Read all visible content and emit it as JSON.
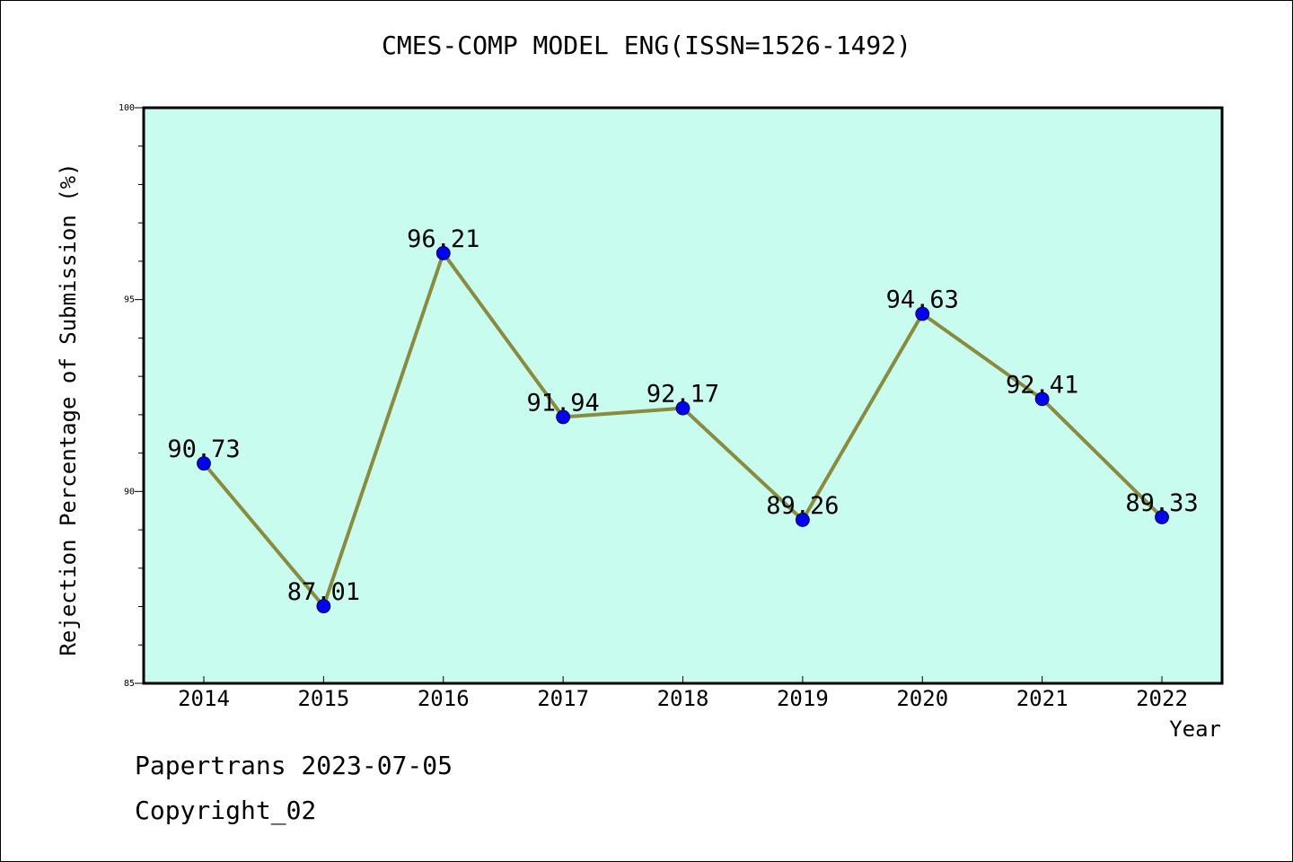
{
  "chart_data": {
    "type": "line",
    "title": "CMES-COMP MODEL ENG(ISSN=1526-1492)",
    "xlabel": "Year",
    "ylabel": "Rejection Percentage of Submission (%)",
    "categories": [
      "2014",
      "2015",
      "2016",
      "2017",
      "2018",
      "2019",
      "2020",
      "2021",
      "2022"
    ],
    "values": [
      90.73,
      87.01,
      96.21,
      91.94,
      92.17,
      89.26,
      94.63,
      92.41,
      89.33
    ],
    "data_labels": [
      "90.73",
      "87.01",
      "96.21",
      "91.94",
      "92.17",
      "89.26",
      "94.63",
      "92.41",
      "89.33"
    ],
    "ylim": [
      85,
      100
    ],
    "y_ticks": [
      85,
      90,
      95,
      100
    ],
    "grid": false,
    "colors": {
      "plot_background": "#c8fcef",
      "line": "#8b8b3c",
      "marker": "#0000ff"
    }
  },
  "footer": {
    "line1": "Papertrans 2023-07-05",
    "line2": "Copyright_02"
  }
}
